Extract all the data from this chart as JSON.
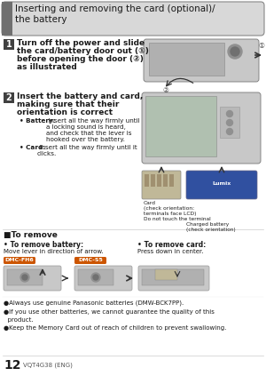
{
  "page_bg": "#ffffff",
  "title_text": "Inserting and removing the card (optional)/\nthe battery",
  "title_box_bg": "#d8d8d8",
  "title_left_bar_bg": "#707070",
  "step_num_bg": "#404040",
  "step_num_color": "#ffffff",
  "step1_num": "1",
  "step1_text_line1": "Turn off the power and slide",
  "step1_text_line2": "the card/battery door out (①)",
  "step1_text_line3": "before opening the door (②)",
  "step1_text_line4": "as illustrated",
  "step2_num": "2",
  "step2_text_line1": "Insert the battery and card,",
  "step2_text_line2": "making sure that their",
  "step2_text_line3": "orientation is correct",
  "bullet1_label": "• Battery:",
  "bullet1_text": " Insert all the way firmly until\na locking sound is heard,\nand check that the lever is\nhooked over the battery.",
  "bullet2_label": "• Card:",
  "bullet2_text": " Insert all the way firmly until it\nclicks.",
  "card_label": "Card\n(check orientation:\nterminals face LCD)",
  "do_not_touch": "Do not touch the terminal",
  "charged_battery": "Charged battery\n(check orientation)",
  "to_remove_title": "■To remove",
  "to_remove_battery_bold": "• To remove battery:",
  "to_remove_battery_text": "Move lever in direction of arrow.",
  "to_remove_card_bold": "• To remove card:",
  "to_remove_card_text": "Press down in center.",
  "dmc_fh6": "DMC-FH6",
  "dmc_s5": "DMC-S5",
  "dmc_bg": "#cc5500",
  "note1": "●Always use genuine Panasonic batteries (DMW-BCK7PP).",
  "note2": "●If you use other batteries, we cannot guarantee the quality of this",
  "note2b": "  product.",
  "note3": "●Keep the Memory Card out of reach of children to prevent swallowing.",
  "page_num": "12",
  "page_code": "VQT4G38 (ENG)",
  "text_color": "#1a1a1a",
  "gray_light": "#cccccc",
  "gray_mid": "#999999",
  "gray_dark": "#666666",
  "cam_body": "#c8c8c8",
  "cam_screen": "#b0c0b0",
  "battery_color": "#3050a0",
  "card_color": "#c0b898"
}
